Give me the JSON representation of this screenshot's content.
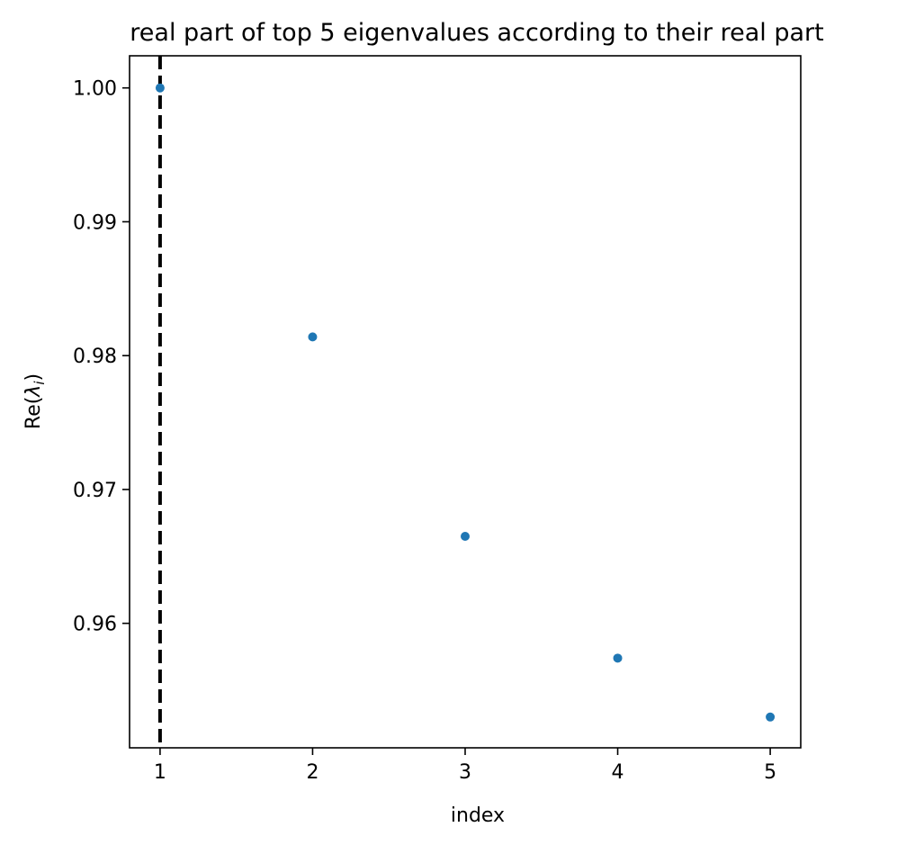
{
  "chart_data": {
    "type": "scatter",
    "title": "real part of top 5 eigenvalues according to their real part",
    "xlabel": "index",
    "ylabel": "Re(λi)",
    "ylabel_main": "Re(",
    "ylabel_symbol": "λ",
    "ylabel_subscript": "i",
    "ylabel_close": ")",
    "xlim": [
      0.8,
      5.2
    ],
    "ylim": [
      0.9507,
      1.0024
    ],
    "xticks": [
      1,
      2,
      3,
      4,
      5
    ],
    "xtick_labels": [
      "1",
      "2",
      "3",
      "4",
      "5"
    ],
    "yticks": [
      0.96,
      0.97,
      0.98,
      0.99,
      1.0
    ],
    "ytick_labels": [
      "0.96",
      "0.97",
      "0.98",
      "0.99",
      "1.00"
    ],
    "grid": false,
    "x": [
      1,
      2,
      3,
      4,
      5
    ],
    "y": [
      1.0,
      0.9814,
      0.9665,
      0.9574,
      0.953
    ],
    "point_color": "#1f77b4",
    "vline": {
      "x": 1,
      "style": "dashed",
      "color": "#000000"
    }
  }
}
